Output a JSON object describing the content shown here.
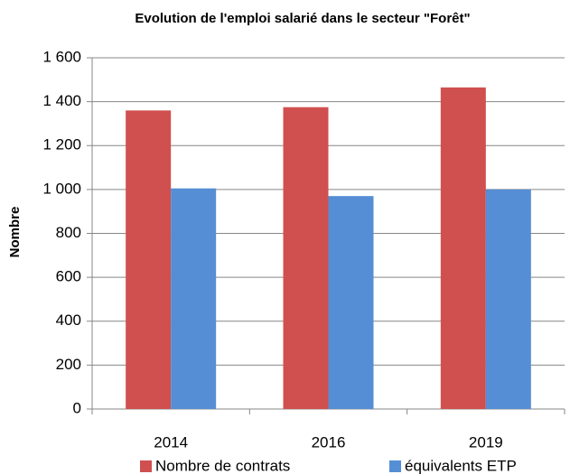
{
  "chart_data": {
    "type": "bar",
    "title": "Evolution de l'emploi salarié  dans le secteur \"Forêt\"",
    "y_label": "Nombre",
    "categories": [
      "2014",
      "2016",
      "2019"
    ],
    "series": [
      {
        "name": "Nombre de contrats",
        "color": "#d0504f",
        "values": [
          1360,
          1375,
          1465
        ]
      },
      {
        "name": "équivalents ETP",
        "color": "#558ed5",
        "values": [
          1005,
          970,
          1000
        ]
      }
    ],
    "ylim": [
      0,
      1600
    ],
    "yticks": [
      0,
      200,
      400,
      600,
      800,
      {
        "value": 1000,
        "label": "1 000"
      },
      {
        "value": 1200,
        "label": "1 200"
      },
      {
        "value": 1400,
        "label": "1 400"
      },
      {
        "value": 1600,
        "label": "1 600"
      }
    ],
    "grid": true,
    "legend": "bottom"
  }
}
